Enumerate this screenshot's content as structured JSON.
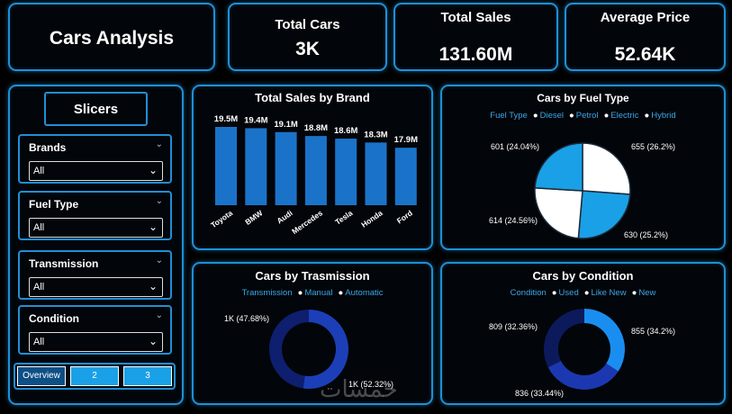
{
  "header": {
    "title": "Cars Analysis"
  },
  "kpis": {
    "total_cars": {
      "label": "Total Cars",
      "value": "3K"
    },
    "total_sales": {
      "label": "Total Sales",
      "value": "131.60M"
    },
    "average_price": {
      "label": "Average Price",
      "value": "52.64K"
    }
  },
  "slicers": {
    "title": "Slicers",
    "items": [
      {
        "label": "Brands",
        "value": "All"
      },
      {
        "label": "Fuel Type",
        "value": "All"
      },
      {
        "label": "Transmission",
        "value": "All"
      },
      {
        "label": "Condition",
        "value": "All"
      }
    ]
  },
  "tabs": [
    "Overview",
    "2",
    "3"
  ],
  "colors": {
    "accent": "#1f8fd6",
    "bar": "#1a73c9",
    "tab": "#1aa0e6"
  },
  "watermark": "خمسات",
  "charts": {
    "sales_by_brand": {
      "title": "Total Sales by Brand",
      "chart_data": {
        "type": "bar",
        "categories": [
          "Toyota",
          "BMW",
          "Audi",
          "Mercedes",
          "Tesla",
          "Honda",
          "Ford"
        ],
        "values": [
          19.5,
          19.4,
          19.1,
          18.8,
          18.6,
          18.3,
          17.9
        ],
        "labels": [
          "19.5M",
          "19.4M",
          "19.1M",
          "18.8M",
          "18.6M",
          "18.3M",
          "17.9M"
        ],
        "ylim": [
          0,
          19.5
        ]
      }
    },
    "fuel_type": {
      "title": "Cars by Fuel Type",
      "legend_title": "Fuel Type",
      "chart_data": {
        "type": "pie",
        "categories": [
          "Diesel",
          "Petrol",
          "Electric",
          "Hybrid"
        ],
        "values": [
          655,
          630,
          614,
          601
        ],
        "labels": [
          "655 (26.2%)",
          "630 (25.2%)",
          "614 (24.56%)",
          "601 (24.04%)"
        ],
        "colors": [
          "#ffffff",
          "#1aa0e6",
          "#ffffff",
          "#1aa0e6"
        ]
      }
    },
    "transmission": {
      "title": "Cars by Trasmission",
      "legend_title": "Transmission",
      "chart_data": {
        "type": "pie",
        "categories": [
          "Manual",
          "Automatic"
        ],
        "values": [
          52.32,
          47.68
        ],
        "labels": [
          "1K (52.32%)",
          "1K (47.68%)"
        ],
        "colors": [
          "#1c3fb8",
          "#0d1f6e"
        ]
      }
    },
    "condition": {
      "title": "Cars by Condition",
      "legend_title": "Condition",
      "chart_data": {
        "type": "pie",
        "categories": [
          "Used",
          "Like New",
          "New"
        ],
        "values": [
          855,
          836,
          809
        ],
        "labels": [
          "855 (34.2%)",
          "836 (33.44%)",
          "809 (32.36%)"
        ],
        "colors": [
          "#1a8ef0",
          "#1c38b0",
          "#0c1a5c"
        ]
      }
    }
  }
}
